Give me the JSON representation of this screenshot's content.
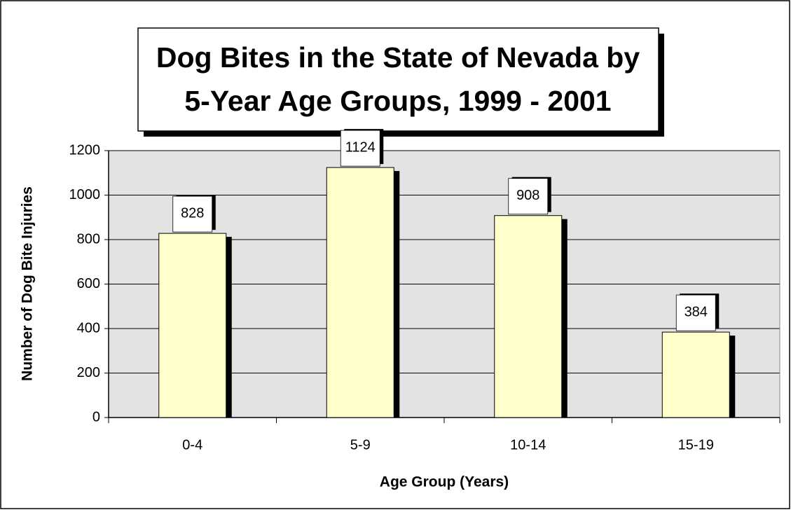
{
  "chart_data": {
    "type": "bar",
    "title": [
      "Dog Bites in the State of Nevada by",
      "5-Year Age Groups, 1999 - 2001"
    ],
    "xlabel": "Age Group (Years)",
    "ylabel": "Number of Dog Bite Injuries",
    "categories": [
      "0-4",
      "5-9",
      "10-14",
      "15-19"
    ],
    "values": [
      828,
      1124,
      908,
      384
    ],
    "color": "#ffffcc",
    "ylim": [
      0,
      1200
    ],
    "yticks": [
      0,
      200,
      400,
      600,
      800,
      1000,
      1200
    ],
    "grid": true
  }
}
